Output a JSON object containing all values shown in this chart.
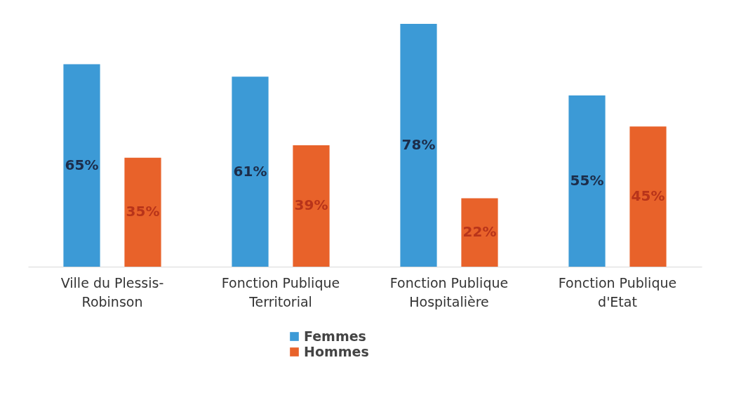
{
  "chart_data": {
    "type": "bar",
    "categories": [
      "Ville du Plessis-Robinson",
      "Fonction Publique Territorial",
      "Fonction Publique Hospitalière",
      "Fonction Publique d'Etat"
    ],
    "series": [
      {
        "name": "Femmes",
        "color": "#3c9ad6",
        "values": [
          65,
          61,
          78,
          55
        ],
        "value_labels": [
          "65%",
          "61%",
          "78%",
          "55%"
        ]
      },
      {
        "name": "Hommes",
        "color": "#e8622a",
        "values": [
          35,
          39,
          22,
          45
        ],
        "value_labels": [
          "35%",
          "39%",
          "22%",
          "45%"
        ]
      }
    ],
    "legend": "bottom",
    "tick_labels": "x"
  }
}
